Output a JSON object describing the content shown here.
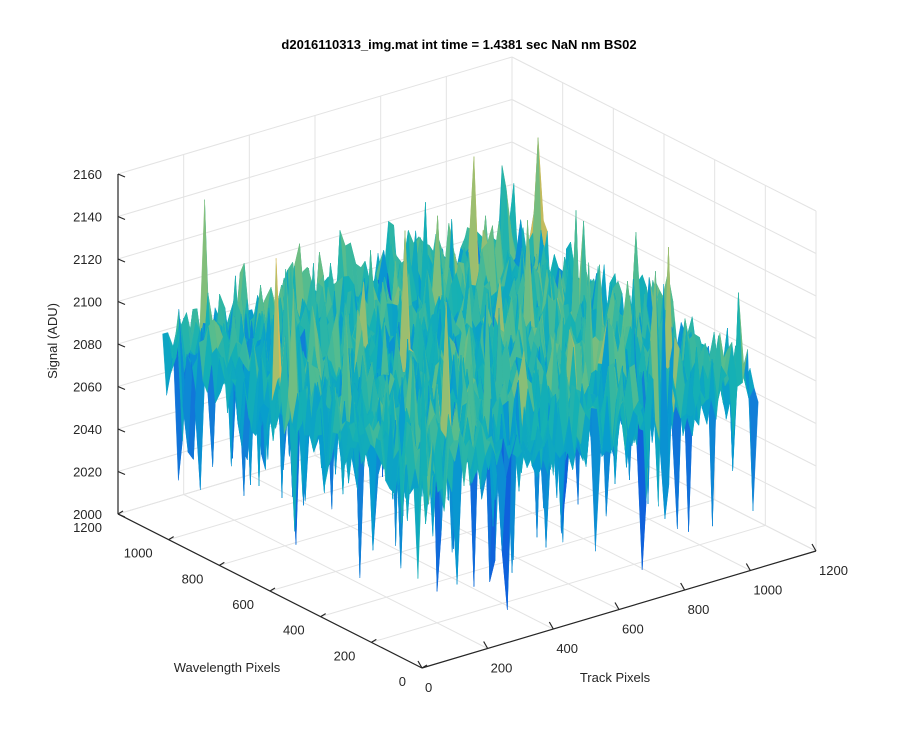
{
  "chart_data": {
    "type": "surface",
    "title": "d2016110313_img.mat int time = 1.4381 sec  NaN nm BS02",
    "xlabel": "Track Pixels",
    "ylabel": "Wavelength Pixels",
    "zlabel": "Signal (ADU)",
    "xlim": [
      0,
      1200
    ],
    "ylim": [
      0,
      1200
    ],
    "zlim": [
      2000,
      2160
    ],
    "xticks": [
      "0",
      "200",
      "400",
      "600",
      "800",
      "1000",
      "1200"
    ],
    "yticks": [
      "0",
      "200",
      "400",
      "600",
      "800",
      "1000",
      "1200"
    ],
    "zticks": [
      "2000",
      "2020",
      "2040",
      "2060",
      "2080",
      "2100",
      "2120",
      "2140",
      "2160"
    ],
    "surface": {
      "x_extent": [
        0,
        1024
      ],
      "y_extent": [
        0,
        1024
      ],
      "z_mean": 2090,
      "z_typical_range": [
        2040,
        2130
      ],
      "z_max": 2158,
      "z_min": 2005,
      "colormap": "parula"
    },
    "grid": true
  }
}
